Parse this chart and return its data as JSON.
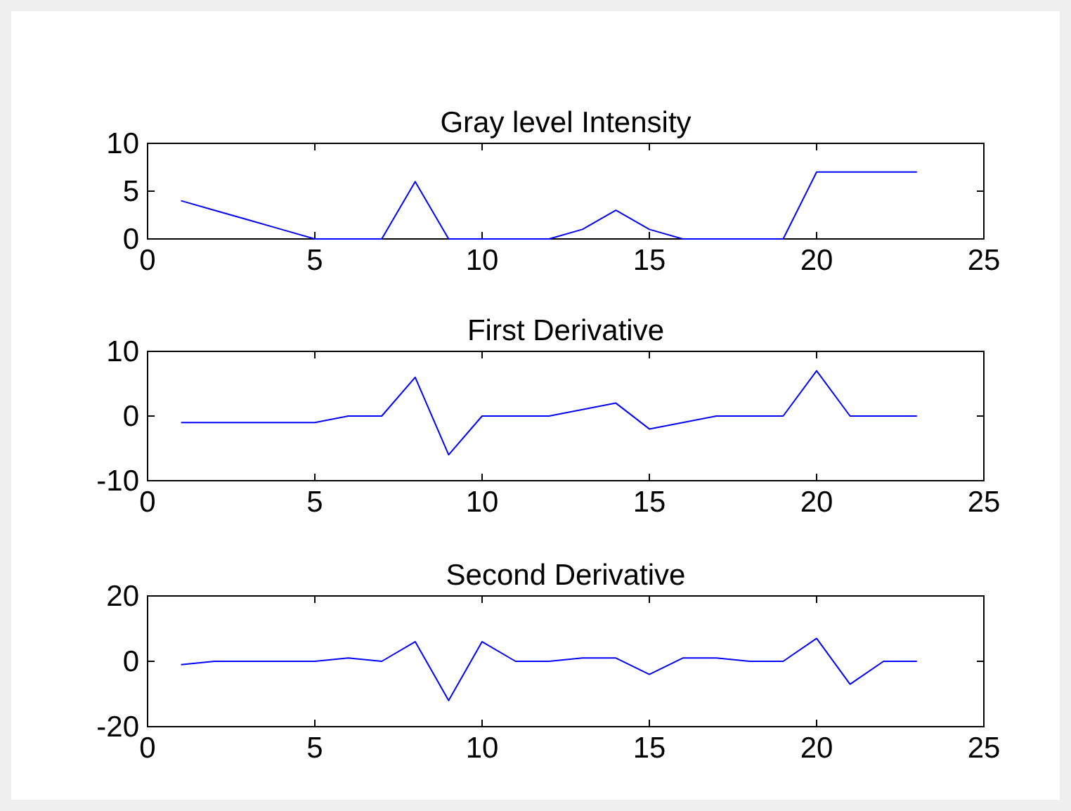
{
  "chart_data": [
    {
      "type": "line",
      "title": "Gray level Intensity",
      "x": [
        1,
        2,
        3,
        4,
        5,
        6,
        7,
        8,
        9,
        10,
        11,
        12,
        13,
        14,
        15,
        16,
        17,
        18,
        19,
        20,
        21,
        22,
        23
      ],
      "values": [
        4,
        3,
        2,
        1,
        0,
        0,
        0,
        6,
        0,
        0,
        0,
        0,
        1,
        3,
        1,
        0,
        0,
        0,
        0,
        7,
        7,
        7,
        7
      ],
      "color": "#0000ff",
      "xlim": [
        0,
        25
      ],
      "xticks": [
        0,
        5,
        10,
        15,
        20,
        25
      ],
      "ylim": [
        0,
        10
      ],
      "yticks": [
        0,
        5,
        10
      ]
    },
    {
      "type": "line",
      "title": "First Derivative",
      "x": [
        1,
        2,
        3,
        4,
        5,
        6,
        7,
        8,
        9,
        10,
        11,
        12,
        13,
        14,
        15,
        16,
        17,
        18,
        19,
        20,
        21,
        22,
        23
      ],
      "values": [
        -1,
        -1,
        -1,
        -1,
        -1,
        0,
        0,
        6,
        -6,
        0,
        0,
        0,
        1,
        2,
        -2,
        -1,
        0,
        0,
        0,
        7,
        0,
        0,
        0
      ],
      "color": "#0000ff",
      "xlim": [
        0,
        25
      ],
      "xticks": [
        0,
        5,
        10,
        15,
        20,
        25
      ],
      "ylim": [
        -10,
        10
      ],
      "yticks": [
        -10,
        0,
        10
      ]
    },
    {
      "type": "line",
      "title": "Second Derivative",
      "x": [
        1,
        2,
        3,
        4,
        5,
        6,
        7,
        8,
        9,
        10,
        11,
        12,
        13,
        14,
        15,
        16,
        17,
        18,
        19,
        20,
        21,
        22,
        23
      ],
      "values": [
        -1,
        0,
        0,
        0,
        0,
        1,
        0,
        6,
        -12,
        6,
        0,
        0,
        1,
        1,
        -4,
        1,
        1,
        0,
        0,
        7,
        -7,
        0,
        0
      ],
      "color": "#0000ff",
      "xlim": [
        0,
        25
      ],
      "xticks": [
        0,
        5,
        10,
        15,
        20,
        25
      ],
      "ylim": [
        -20,
        20
      ],
      "yticks": [
        -20,
        0,
        20
      ]
    }
  ]
}
